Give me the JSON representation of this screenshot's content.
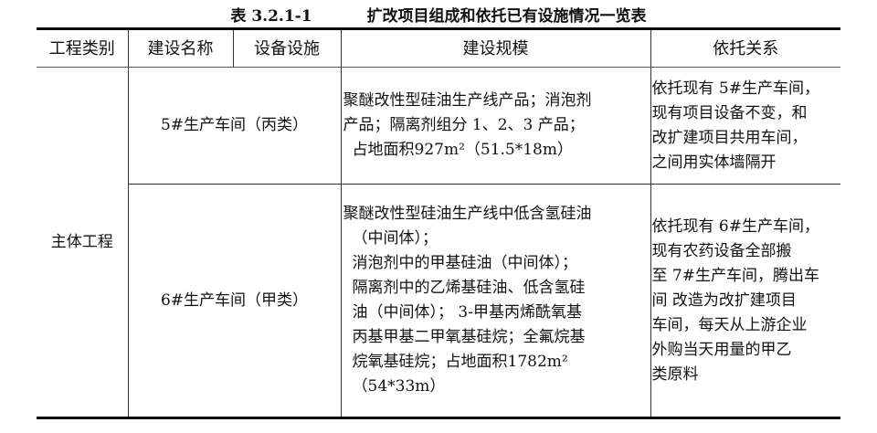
{
  "title": {
    "number": "表 3.2.1-1",
    "text": "扩改项目组成和依托已有设施情况一览表"
  },
  "headers": [
    "工程类别",
    "建设名称",
    "设备设施",
    "建设规模",
    "依托关系"
  ],
  "category": "主体工程",
  "rows": [
    {
      "name": "5#生产车间（丙类）",
      "scale": [
        "聚醚改性型硅油生产线产品；消泡剂",
        "产品；隔离剂组分 1、2、3 产品；",
        "占地面积927m²（51.5*18m）"
      ],
      "relation": [
        "依托现有 5#生产车间，",
        "现有项目设备不变，和",
        "改扩建项目共用车间，",
        "之间用实体墙隔开"
      ]
    },
    {
      "name": "6#生产车间（甲类）",
      "scale": [
        "聚醚改性型硅油生产线中低含氢硅油",
        "（中间体）；",
        "消泡剂中的甲基硅油（中间体）；",
        "隔离剂中的乙烯基硅油、低含氢硅",
        "油（中间体）； 3-甲基丙烯酰氧基",
        "丙基甲基二甲氧基硅烷；全氟烷基",
        "烷氧基硅烷；占地面积1782m²",
        "（54*33m）"
      ],
      "relation": [
        "依托现有 6#生产车间，",
        "现有农药设备全部搬",
        "至 7#生产车间，腾出车",
        "间 改造为改扩建项目",
        "车间，每天从上游企业",
        "外购当天用量的甲乙",
        "类原料"
      ]
    }
  ]
}
